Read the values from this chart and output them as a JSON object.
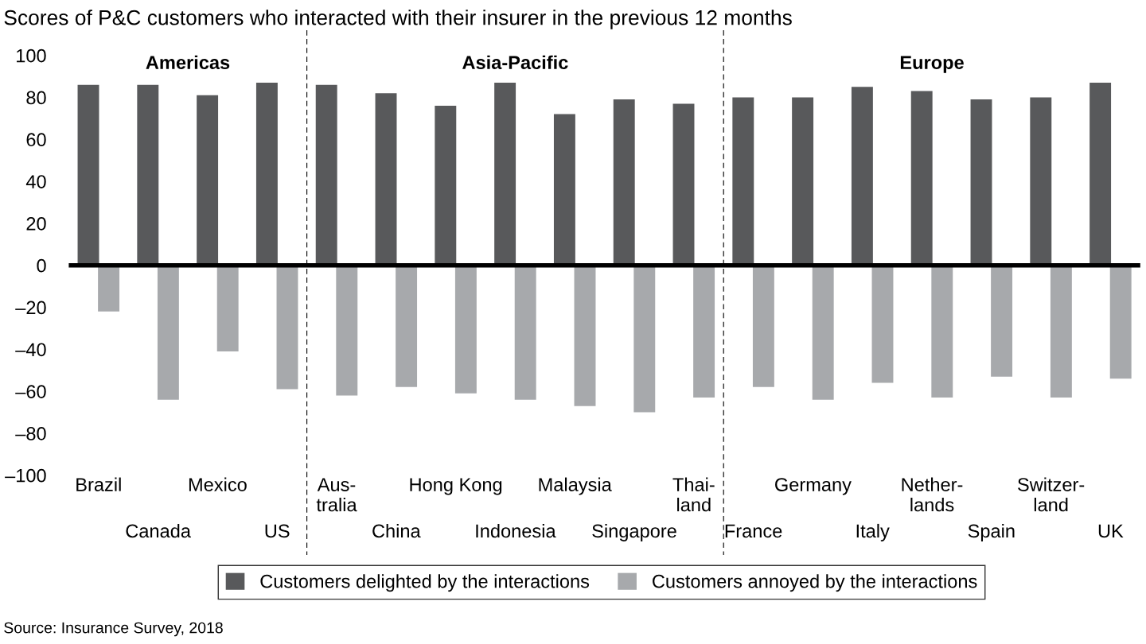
{
  "chart_data": {
    "type": "bar",
    "title": "Scores of P&C customers who interacted with their insurer in the previous 12 months",
    "categories": [
      "Brazil",
      "Canada",
      "Mexico",
      "US",
      "Aus-\ntralia",
      "China",
      "Hong Kong",
      "Indonesia",
      "Malaysia",
      "Singapore",
      "Thai-\nland",
      "France",
      "Germany",
      "Italy",
      "Nether-\nlands",
      "Spain",
      "Switzer-\nland",
      "UK"
    ],
    "series": [
      {
        "name": "Customers delighted by the interactions",
        "color": "#58595b",
        "values": [
          86,
          86,
          81,
          87,
          86,
          82,
          76,
          87,
          72,
          79,
          77,
          80,
          80,
          85,
          83,
          79,
          80,
          87
        ]
      },
      {
        "name": "Customers annoyed by the interactions",
        "color": "#a7a9ac",
        "values": [
          -22,
          -64,
          -41,
          -59,
          -62,
          -58,
          -61,
          -64,
          -67,
          -70,
          -63,
          -58,
          -64,
          -56,
          -63,
          -53,
          -63,
          -54
        ]
      }
    ],
    "ylim": [
      -100,
      100
    ],
    "yticks": [
      {
        "value": -100,
        "label": "–100"
      },
      {
        "value": -80,
        "label": "–80"
      },
      {
        "value": -60,
        "label": "–60"
      },
      {
        "value": -40,
        "label": "–40"
      },
      {
        "value": -20,
        "label": "–20"
      },
      0,
      20,
      40,
      60,
      80,
      100
    ],
    "ref_lines": [
      {
        "axis": "y",
        "value": 0,
        "color": "#000000",
        "line_style": "solid"
      }
    ],
    "legend": "bottom",
    "grid": false,
    "annotations": [
      "Americas",
      "Asia-Pacific",
      "Europe",
      "Source: Insurance Survey, 2018"
    ]
  }
}
